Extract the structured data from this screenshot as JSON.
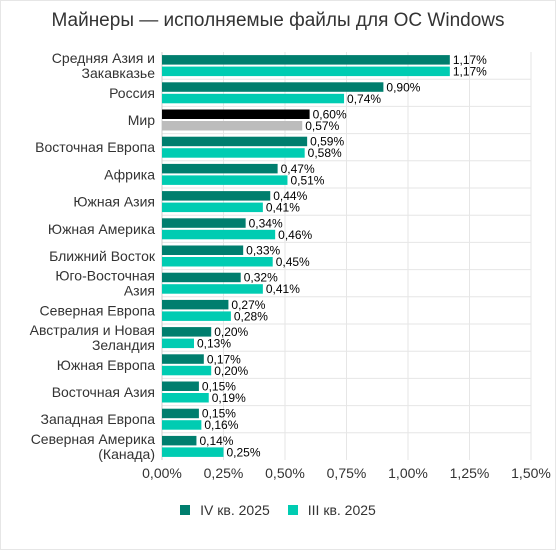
{
  "chart_data": {
    "type": "bar",
    "orientation": "horizontal",
    "title": "Майнеры — исполняемые файлы для ОС Windows",
    "categories": [
      "Средняя Азия и Закавказье",
      "Россия",
      "Мир",
      "Восточная Европа",
      "Африка",
      "Южная Азия",
      "Южная Америка",
      "Ближний Восток",
      "Юго-Восточная Азия",
      "Северная Европа",
      "Австралия и Новая Зеландия",
      "Южная Европа",
      "Восточная Азия",
      "Западная Европа",
      "Северная Америка (Канада)"
    ],
    "category_lines": [
      [
        "Средняя Азия и",
        "Закавказье"
      ],
      [
        "Россия"
      ],
      [
        "Мир"
      ],
      [
        "Восточная Европа"
      ],
      [
        "Африка"
      ],
      [
        "Южная Азия"
      ],
      [
        "Южная Америка"
      ],
      [
        "Ближний Восток"
      ],
      [
        "Юго-Восточная",
        "Азия"
      ],
      [
        "Северная Европа"
      ],
      [
        "Австралия и Новая",
        "Зеландия"
      ],
      [
        "Южная Европа"
      ],
      [
        "Восточная Азия"
      ],
      [
        "Западная Европа"
      ],
      [
        "Северная Америка",
        "(Канада)"
      ]
    ],
    "series": [
      {
        "name": "IV кв. 2025",
        "color": "#007e6e",
        "values": [
          1.17,
          0.9,
          0.6,
          0.59,
          0.47,
          0.44,
          0.34,
          0.33,
          0.32,
          0.27,
          0.2,
          0.17,
          0.15,
          0.15,
          0.14
        ],
        "labels": [
          "1,17%",
          "0,90%",
          "0,60%",
          "0,59%",
          "0,47%",
          "0,44%",
          "0,34%",
          "0,33%",
          "0,32%",
          "0,27%",
          "0,20%",
          "0,17%",
          "0,15%",
          "0,15%",
          "0,14%"
        ]
      },
      {
        "name": "III кв. 2025",
        "color": "#00ccb2",
        "values": [
          1.17,
          0.74,
          0.57,
          0.58,
          0.51,
          0.41,
          0.46,
          0.45,
          0.41,
          0.28,
          0.13,
          0.2,
          0.19,
          0.16,
          0.25
        ],
        "labels": [
          "1,17%",
          "0,74%",
          "0,57%",
          "0,58%",
          "0,51%",
          "0,41%",
          "0,46%",
          "0,45%",
          "0,41%",
          "0,28%",
          "0,13%",
          "0,20%",
          "0,19%",
          "0,16%",
          "0,25%"
        ]
      }
    ],
    "highlight": {
      "category": "Мир",
      "colors": [
        "#000000",
        "#bcbcbc"
      ]
    },
    "xlim": [
      0,
      1.5
    ],
    "xticks": [
      0,
      0.25,
      0.5,
      0.75,
      1.0,
      1.25,
      1.5
    ],
    "xtick_labels": [
      "0,00%",
      "0,25%",
      "0,50%",
      "0,75%",
      "1,00%",
      "1,25%",
      "1,50%"
    ],
    "grid": true,
    "legend_position": "bottom",
    "colors": {
      "text": "#333333",
      "grid": "#e6e6e6",
      "axis": "#cccccc"
    }
  }
}
